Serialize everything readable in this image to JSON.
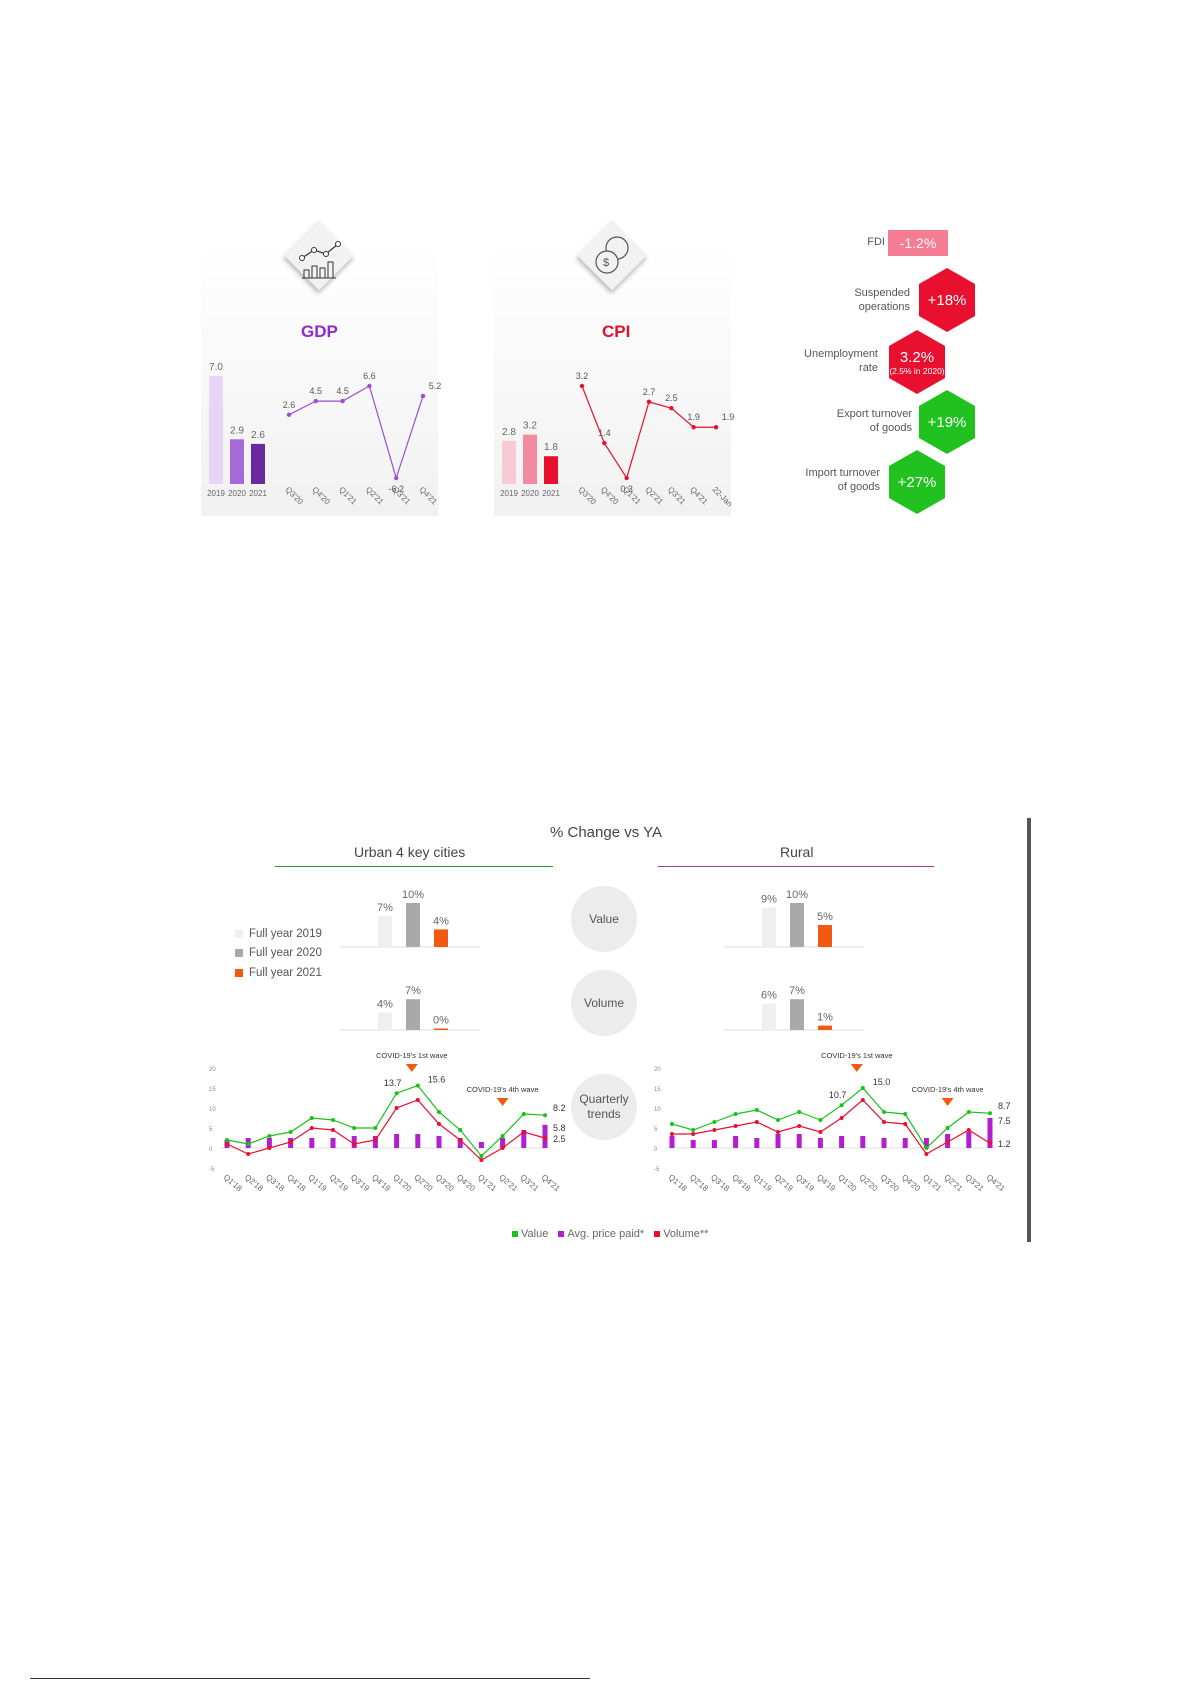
{
  "gdp": {
    "title": "GDP",
    "icon": "chart-icon",
    "annual": {
      "categories": [
        "2019",
        "2020",
        "2021"
      ],
      "values": [
        7.0,
        2.9,
        2.6
      ],
      "labels": [
        "7.0",
        "2.9",
        "2.6"
      ],
      "colors": [
        "#e8d5f5",
        "#a56ad8",
        "#6a2a9f"
      ]
    },
    "quarterly": {
      "categories": [
        "Q3'20",
        "Q4'20",
        "Q1'21",
        "Q2'21",
        "Q3'21",
        "Q4'21"
      ],
      "values": [
        2.6,
        4.5,
        4.5,
        6.6,
        -6.2,
        5.2
      ],
      "labels": [
        "2.6",
        "4.5",
        "4.5",
        "6.6",
        "-6.2",
        "5.2"
      ],
      "color": "#9b4dd8"
    }
  },
  "cpi": {
    "title": "CPI",
    "icon": "coins-icon",
    "annual": {
      "categories": [
        "2019",
        "2020",
        "2021"
      ],
      "values": [
        2.8,
        3.2,
        1.8
      ],
      "labels": [
        "2.8",
        "3.2",
        "1.8"
      ],
      "colors": [
        "#f9cad3",
        "#f28aa0",
        "#e8102e"
      ]
    },
    "monthly": {
      "categories": [
        "Q3'20",
        "Q4'20",
        "Q1'21",
        "Q2'21",
        "Q3'21",
        "Q4'21",
        "22-Jan"
      ],
      "values": [
        3.2,
        1.4,
        0.3,
        2.7,
        2.5,
        1.9,
        1.9
      ],
      "labels": [
        "3.2",
        "1.4",
        "0.3",
        "2.7",
        "2.5",
        "1.9",
        "1.9"
      ],
      "color": "#e8102e"
    }
  },
  "indicators": [
    {
      "label": "FDI",
      "value": "-1.2%",
      "color": "#f47d93"
    },
    {
      "label": "Suspended operations",
      "value": "+18%",
      "color": "#e8102e"
    },
    {
      "label": "Unemployment rate",
      "value": "3.2%",
      "sub": "(2.5% in 2020)",
      "color": "#e8102e"
    },
    {
      "label": "Export turnover of goods",
      "value": "+19%",
      "color": "#21c21f"
    },
    {
      "label": "Import turnover of goods",
      "value": "+27%",
      "color": "#21c21f"
    }
  ],
  "lower": {
    "title": "% Change vs YA",
    "urban_title": "Urban 4 key cities",
    "rural_title": "Rural",
    "circles": {
      "value": "Value",
      "volume": "Volume",
      "quarterly": "Quarterly trends"
    },
    "legend_years": [
      {
        "label": "Full year 2019",
        "color": "#efefef"
      },
      {
        "label": "Full year 2020",
        "color": "#a9a9a9"
      },
      {
        "label": "Full year 2021",
        "color": "#f25a12"
      }
    ],
    "series_legend": [
      {
        "label": "Value",
        "color": "#19c219"
      },
      {
        "label": "Avg. price paid*",
        "color": "#b21ed0"
      },
      {
        "label": "Volume**",
        "color": "#e8102e"
      }
    ]
  },
  "chart_data": [
    {
      "type": "bar",
      "title": "GDP",
      "categories": [
        "2019",
        "2020",
        "2021"
      ],
      "values": [
        7.0,
        2.9,
        2.6
      ]
    },
    {
      "type": "line",
      "title": "GDP",
      "categories": [
        "Q3'20",
        "Q4'20",
        "Q1'21",
        "Q2'21",
        "Q3'21",
        "Q4'21"
      ],
      "values": [
        2.6,
        4.5,
        4.5,
        6.6,
        -6.2,
        5.2
      ]
    },
    {
      "type": "bar",
      "title": "CPI",
      "categories": [
        "2019",
        "2020",
        "2021"
      ],
      "values": [
        2.8,
        3.2,
        1.8
      ]
    },
    {
      "type": "line",
      "title": "CPI",
      "categories": [
        "Q3'20",
        "Q4'20",
        "Q1'21",
        "Q2'21",
        "Q3'21",
        "Q4'21",
        "22-Jan"
      ],
      "values": [
        3.2,
        1.4,
        0.3,
        2.7,
        2.5,
        1.9,
        1.9
      ]
    },
    {
      "type": "bar",
      "panel": "Urban 4 key cities",
      "metric": "Value",
      "categories": [
        "Full year 2019",
        "Full year 2020",
        "Full year 2021"
      ],
      "values": [
        7,
        10,
        4
      ],
      "labels": [
        "7%",
        "10%",
        "4%"
      ]
    },
    {
      "type": "bar",
      "panel": "Urban 4 key cities",
      "metric": "Volume",
      "categories": [
        "Full year 2019",
        "Full year 2020",
        "Full year 2021"
      ],
      "values": [
        4,
        7,
        0
      ],
      "labels": [
        "4%",
        "7%",
        "0%"
      ]
    },
    {
      "type": "bar",
      "panel": "Rural",
      "metric": "Value",
      "categories": [
        "Full year 2019",
        "Full year 2020",
        "Full year 2021"
      ],
      "values": [
        9,
        10,
        5
      ],
      "labels": [
        "9%",
        "10%",
        "5%"
      ]
    },
    {
      "type": "bar",
      "panel": "Rural",
      "metric": "Volume",
      "categories": [
        "Full year 2019",
        "Full year 2020",
        "Full year 2021"
      ],
      "values": [
        6,
        7,
        1
      ],
      "labels": [
        "6%",
        "7%",
        "1%"
      ]
    },
    {
      "type": "line",
      "panel": "Urban 4 key cities",
      "metric": "Quarterly trends",
      "categories": [
        "Q1'18",
        "Q2'18",
        "Q3'18",
        "Q4'18",
        "Q1'19",
        "Q2'19",
        "Q3'19",
        "Q4'19",
        "Q1'20",
        "Q2'20",
        "Q3'20",
        "Q4'20",
        "Q1'21",
        "Q2'21",
        "Q3'21",
        "Q4'21"
      ],
      "ylim": [
        -5,
        20
      ],
      "yticks": [
        "20",
        "15",
        "10",
        "5",
        "0",
        "-5"
      ],
      "series": [
        {
          "name": "Value",
          "type": "line",
          "values": [
            2,
            1,
            3,
            4,
            7.5,
            7,
            5,
            5,
            13.7,
            15.6,
            9,
            4.5,
            -2,
            3,
            8.5,
            8.2
          ]
        },
        {
          "name": "Avg. price paid*",
          "type": "bar",
          "values": [
            2,
            2.5,
            2.5,
            2.5,
            2.5,
            2.5,
            3,
            3,
            3.5,
            3.5,
            3,
            2.5,
            1.5,
            2.5,
            4.5,
            5.8
          ]
        },
        {
          "name": "Volume**",
          "type": "line",
          "values": [
            1,
            -1.5,
            0,
            1.5,
            5,
            4.5,
            1,
            2,
            10,
            12,
            6,
            2,
            -3,
            0,
            4,
            2.5
          ]
        }
      ],
      "data_labels": [
        "13.7",
        "15.6",
        "8.2",
        "5.8",
        "2.5"
      ],
      "annotations": [
        {
          "text": "COVID-19's 1st wave"
        },
        {
          "text": "COVID-19's 4th wave"
        }
      ]
    },
    {
      "type": "line",
      "panel": "Rural",
      "metric": "Quarterly trends",
      "categories": [
        "Q1'18",
        "Q2'18",
        "Q3'18",
        "Q4'18",
        "Q1'19",
        "Q2'19",
        "Q3'19",
        "Q4'19",
        "Q1'20",
        "Q2'20",
        "Q3'20",
        "Q4'20",
        "Q1'21",
        "Q2'21",
        "Q3'21",
        "Q4'21"
      ],
      "ylim": [
        -5,
        20
      ],
      "yticks": [
        "20",
        "15",
        "10",
        "5",
        "0",
        "-5"
      ],
      "series": [
        {
          "name": "Value",
          "type": "line",
          "values": [
            6,
            4.5,
            6.5,
            8.5,
            9.5,
            7,
            9,
            7,
            10.7,
            15,
            9,
            8.5,
            0,
            5,
            9,
            8.7
          ]
        },
        {
          "name": "Avg. price paid*",
          "type": "bar",
          "values": [
            3,
            2,
            2,
            3,
            2.5,
            3.5,
            3.5,
            2.5,
            3,
            3,
            2.5,
            2.5,
            2.5,
            3.5,
            4,
            7.5
          ]
        },
        {
          "name": "Volume**",
          "type": "line",
          "values": [
            3.5,
            3.5,
            4.5,
            5.5,
            6.5,
            4,
            5.5,
            4,
            7.5,
            12,
            6.5,
            6,
            -1.5,
            1.5,
            4.5,
            1.2
          ]
        }
      ],
      "data_labels": [
        "10.7",
        "15.0",
        "8.7",
        "7.5",
        "1.2"
      ],
      "annotations": [
        {
          "text": "COVID-19's 1st wave"
        },
        {
          "text": "COVID-19's 4th wave"
        }
      ]
    }
  ]
}
